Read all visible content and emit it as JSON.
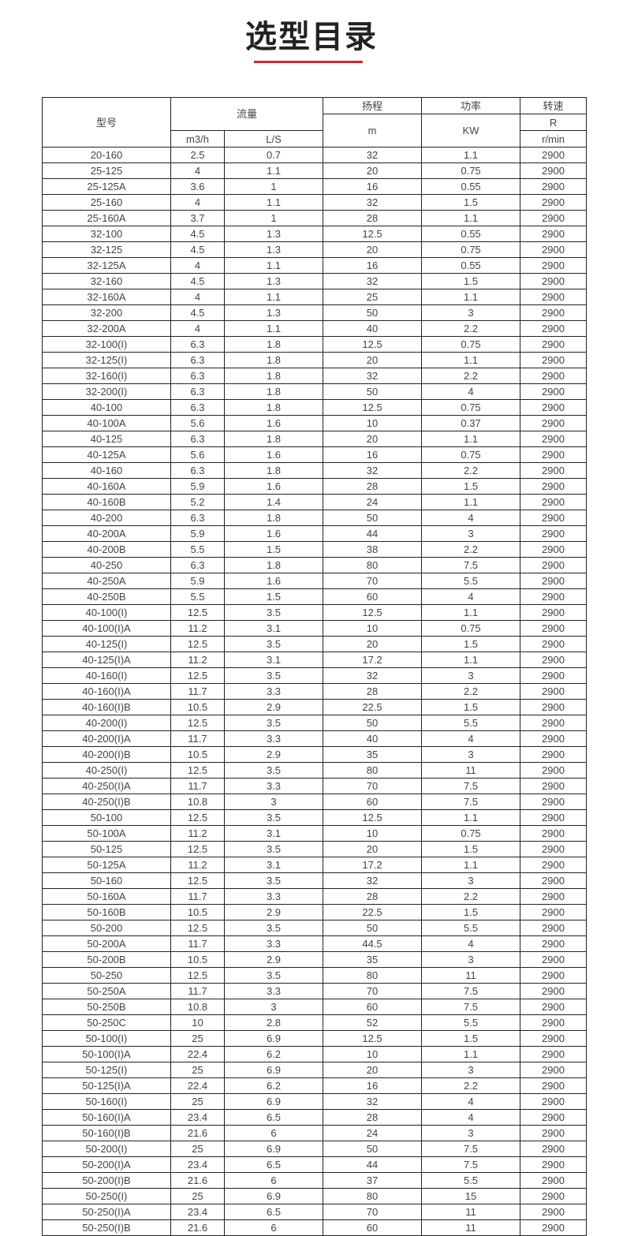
{
  "title": "选型目录",
  "header": {
    "model": "型号",
    "flow": "流量",
    "head": "扬程",
    "power": "功率",
    "speed": "转速",
    "flow_unit1": "m3/h",
    "flow_unit2": "L/S",
    "head_unit": "m",
    "power_unit": "KW",
    "speed_sym": "R",
    "speed_unit": "r/min"
  },
  "rows": [
    [
      "20-160",
      "2.5",
      "0.7",
      "32",
      "1.1",
      "2900"
    ],
    [
      "25-125",
      "4",
      "1.1",
      "20",
      "0.75",
      "2900"
    ],
    [
      "25-125A",
      "3.6",
      "1",
      "16",
      "0.55",
      "2900"
    ],
    [
      "25-160",
      "4",
      "1.1",
      "32",
      "1.5",
      "2900"
    ],
    [
      "25-160A",
      "3.7",
      "1",
      "28",
      "1.1",
      "2900"
    ],
    [
      "32-100",
      "4.5",
      "1.3",
      "12.5",
      "0.55",
      "2900"
    ],
    [
      "32-125",
      "4.5",
      "1.3",
      "20",
      "0.75",
      "2900"
    ],
    [
      "32-125A",
      "4",
      "1.1",
      "16",
      "0.55",
      "2900"
    ],
    [
      "32-160",
      "4.5",
      "1.3",
      "32",
      "1.5",
      "2900"
    ],
    [
      "32-160A",
      "4",
      "1.1",
      "25",
      "1.1",
      "2900"
    ],
    [
      "32-200",
      "4.5",
      "1.3",
      "50",
      "3",
      "2900"
    ],
    [
      "32-200A",
      "4",
      "1.1",
      "40",
      "2.2",
      "2900"
    ],
    [
      "32-100(I)",
      "6.3",
      "1.8",
      "12.5",
      "0.75",
      "2900"
    ],
    [
      "32-125(I)",
      "6.3",
      "1.8",
      "20",
      "1.1",
      "2900"
    ],
    [
      "32-160(I)",
      "6.3",
      "1.8",
      "32",
      "2.2",
      "2900"
    ],
    [
      "32-200(I)",
      "6.3",
      "1.8",
      "50",
      "4",
      "2900"
    ],
    [
      "40-100",
      "6.3",
      "1.8",
      "12.5",
      "0.75",
      "2900"
    ],
    [
      "40-100A",
      "5.6",
      "1.6",
      "10",
      "0.37",
      "2900"
    ],
    [
      "40-125",
      "6.3",
      "1.8",
      "20",
      "1.1",
      "2900"
    ],
    [
      "40-125A",
      "5.6",
      "1.6",
      "16",
      "0.75",
      "2900"
    ],
    [
      "40-160",
      "6.3",
      "1.8",
      "32",
      "2.2",
      "2900"
    ],
    [
      "40-160A",
      "5.9",
      "1.6",
      "28",
      "1.5",
      "2900"
    ],
    [
      "40-160B",
      "5.2",
      "1.4",
      "24",
      "1.1",
      "2900"
    ],
    [
      "40-200",
      "6.3",
      "1.8",
      "50",
      "4",
      "2900"
    ],
    [
      "40-200A",
      "5.9",
      "1.6",
      "44",
      "3",
      "2900"
    ],
    [
      "40-200B",
      "5.5",
      "1.5",
      "38",
      "2.2",
      "2900"
    ],
    [
      "40-250",
      "6.3",
      "1.8",
      "80",
      "7.5",
      "2900"
    ],
    [
      "40-250A",
      "5.9",
      "1.6",
      "70",
      "5.5",
      "2900"
    ],
    [
      "40-250B",
      "5.5",
      "1.5",
      "60",
      "4",
      "2900"
    ],
    [
      "40-100(I)",
      "12.5",
      "3.5",
      "12.5",
      "1.1",
      "2900"
    ],
    [
      "40-100(I)A",
      "11.2",
      "3.1",
      "10",
      "0.75",
      "2900"
    ],
    [
      "40-125(I)",
      "12.5",
      "3.5",
      "20",
      "1.5",
      "2900"
    ],
    [
      "40-125(I)A",
      "11.2",
      "3.1",
      "17.2",
      "1.1",
      "2900"
    ],
    [
      "40-160(I)",
      "12.5",
      "3.5",
      "32",
      "3",
      "2900"
    ],
    [
      "40-160(I)A",
      "11.7",
      "3.3",
      "28",
      "2.2",
      "2900"
    ],
    [
      "40-160(I)B",
      "10.5",
      "2.9",
      "22.5",
      "1.5",
      "2900"
    ],
    [
      "40-200(I)",
      "12.5",
      "3.5",
      "50",
      "5.5",
      "2900"
    ],
    [
      "40-200(I)A",
      "11.7",
      "3.3",
      "40",
      "4",
      "2900"
    ],
    [
      "40-200(I)B",
      "10.5",
      "2.9",
      "35",
      "3",
      "2900"
    ],
    [
      "40-250(I)",
      "12.5",
      "3.5",
      "80",
      "11",
      "2900"
    ],
    [
      "40-250(I)A",
      "11.7",
      "3.3",
      "70",
      "7.5",
      "2900"
    ],
    [
      "40-250(I)B",
      "10.8",
      "3",
      "60",
      "7.5",
      "2900"
    ],
    [
      "50-100",
      "12.5",
      "3.5",
      "12.5",
      "1.1",
      "2900"
    ],
    [
      "50-100A",
      "11.2",
      "3.1",
      "10",
      "0.75",
      "2900"
    ],
    [
      "50-125",
      "12.5",
      "3.5",
      "20",
      "1.5",
      "2900"
    ],
    [
      "50-125A",
      "11.2",
      "3.1",
      "17.2",
      "1.1",
      "2900"
    ],
    [
      "50-160",
      "12.5",
      "3.5",
      "32",
      "3",
      "2900"
    ],
    [
      "50-160A",
      "11.7",
      "3.3",
      "28",
      "2.2",
      "2900"
    ],
    [
      "50-160B",
      "10.5",
      "2.9",
      "22.5",
      "1.5",
      "2900"
    ],
    [
      "50-200",
      "12.5",
      "3.5",
      "50",
      "5.5",
      "2900"
    ],
    [
      "50-200A",
      "11.7",
      "3.3",
      "44.5",
      "4",
      "2900"
    ],
    [
      "50-200B",
      "10.5",
      "2.9",
      "35",
      "3",
      "2900"
    ],
    [
      "50-250",
      "12.5",
      "3.5",
      "80",
      "11",
      "2900"
    ],
    [
      "50-250A",
      "11.7",
      "3.3",
      "70",
      "7.5",
      "2900"
    ],
    [
      "50-250B",
      "10.8",
      "3",
      "60",
      "7.5",
      "2900"
    ],
    [
      "50-250C",
      "10",
      "2.8",
      "52",
      "5.5",
      "2900"
    ],
    [
      "50-100(I)",
      "25",
      "6.9",
      "12.5",
      "1.5",
      "2900"
    ],
    [
      "50-100(I)A",
      "22.4",
      "6.2",
      "10",
      "1.1",
      "2900"
    ],
    [
      "50-125(I)",
      "25",
      "6.9",
      "20",
      "3",
      "2900"
    ],
    [
      "50-125(I)A",
      "22.4",
      "6.2",
      "16",
      "2.2",
      "2900"
    ],
    [
      "50-160(I)",
      "25",
      "6.9",
      "32",
      "4",
      "2900"
    ],
    [
      "50-160(I)A",
      "23.4",
      "6.5",
      "28",
      "4",
      "2900"
    ],
    [
      "50-160(I)B",
      "21.6",
      "6",
      "24",
      "3",
      "2900"
    ],
    [
      "50-200(I)",
      "25",
      "6.9",
      "50",
      "7.5",
      "2900"
    ],
    [
      "50-200(I)A",
      "23.4",
      "6.5",
      "44",
      "7.5",
      "2900"
    ],
    [
      "50-200(I)B",
      "21.6",
      "6",
      "37",
      "5.5",
      "2900"
    ],
    [
      "50-250(I)",
      "25",
      "6.9",
      "80",
      "15",
      "2900"
    ],
    [
      "50-250(I)A",
      "23.4",
      "6.5",
      "70",
      "11",
      "2900"
    ],
    [
      "50-250(I)B",
      "21.6",
      "6",
      "60",
      "11",
      "2900"
    ]
  ]
}
